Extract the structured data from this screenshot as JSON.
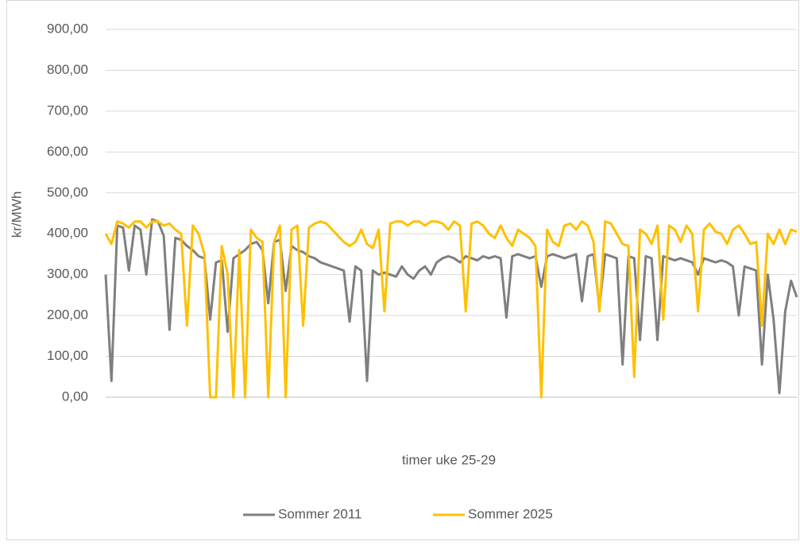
{
  "chart_data": {
    "type": "line",
    "y_label": "kr/MWh",
    "x_label": "timer uke 25-29",
    "ylim": [
      0,
      900
    ],
    "yticks": [
      {
        "value": 0,
        "label": "0,00"
      },
      {
        "value": 100,
        "label": "100,00"
      },
      {
        "value": 200,
        "label": "200,00"
      },
      {
        "value": 300,
        "label": "300,00"
      },
      {
        "value": 400,
        "label": "400,00"
      },
      {
        "value": 500,
        "label": "500,00"
      },
      {
        "value": 600,
        "label": "600,00"
      },
      {
        "value": 700,
        "label": "700,00"
      },
      {
        "value": 800,
        "label": "800,00"
      },
      {
        "value": 900,
        "label": "900,00"
      }
    ],
    "grid": true,
    "legend": "bottom",
    "series": [
      {
        "name": "Sommer 2011",
        "color": "#7f7f7f",
        "values": [
          300,
          40,
          420,
          415,
          310,
          420,
          410,
          300,
          435,
          430,
          395,
          165,
          390,
          385,
          370,
          360,
          345,
          340,
          190,
          330,
          335,
          160,
          340,
          350,
          360,
          375,
          380,
          360,
          230,
          380,
          385,
          260,
          370,
          360,
          355,
          345,
          340,
          330,
          325,
          320,
          315,
          310,
          185,
          320,
          310,
          40,
          310,
          300,
          305,
          300,
          295,
          320,
          300,
          290,
          310,
          320,
          300,
          330,
          340,
          345,
          340,
          330,
          345,
          340,
          335,
          345,
          340,
          345,
          340,
          195,
          345,
          350,
          345,
          340,
          345,
          270,
          345,
          350,
          345,
          340,
          345,
          350,
          235,
          345,
          350,
          220,
          350,
          345,
          340,
          80,
          345,
          340,
          140,
          345,
          340,
          140,
          345,
          340,
          335,
          340,
          335,
          330,
          300,
          340,
          335,
          330,
          335,
          330,
          320,
          200,
          320,
          315,
          310,
          80,
          300,
          190,
          10,
          210,
          285,
          245
        ]
      },
      {
        "name": "Sommer 2025",
        "color": "#ffc000",
        "values": [
          400,
          375,
          430,
          425,
          415,
          430,
          430,
          415,
          430,
          430,
          420,
          425,
          410,
          400,
          175,
          420,
          400,
          350,
          0,
          0,
          370,
          300,
          0,
          360,
          0,
          410,
          390,
          380,
          0,
          380,
          420,
          0,
          410,
          420,
          175,
          415,
          425,
          430,
          425,
          410,
          395,
          380,
          370,
          380,
          410,
          375,
          365,
          410,
          210,
          425,
          430,
          430,
          420,
          430,
          430,
          420,
          430,
          430,
          425,
          410,
          430,
          420,
          210,
          425,
          430,
          420,
          400,
          390,
          420,
          390,
          370,
          410,
          400,
          390,
          370,
          0,
          410,
          380,
          370,
          420,
          425,
          410,
          430,
          420,
          380,
          210,
          430,
          425,
          400,
          375,
          370,
          50,
          410,
          400,
          375,
          420,
          190,
          420,
          410,
          380,
          420,
          400,
          210,
          410,
          425,
          405,
          400,
          375,
          410,
          420,
          400,
          375,
          380,
          175,
          400,
          375,
          410,
          375,
          410,
          405
        ]
      }
    ]
  }
}
